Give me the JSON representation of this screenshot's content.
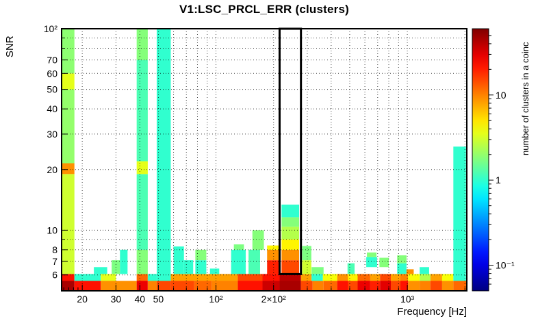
{
  "chart_data": {
    "type": "heatmap",
    "title": "V1:LSC_PRCL_ERR (clusters)",
    "xlabel": "Frequency [Hz]",
    "ylabel": "SNR",
    "zlabel": "number of clusters in a coinc",
    "xlim": [
      15.6,
      2046
    ],
    "ylim": [
      5.0,
      100
    ],
    "zlim": [
      0.05,
      60
    ],
    "x_scale": "log",
    "y_scale": "log",
    "z_scale": "log",
    "grid": "dotted",
    "frame_color": "#000000",
    "xticks": [
      {
        "v": 20,
        "label": "20"
      },
      {
        "v": 30,
        "label": "30"
      },
      {
        "v": 40,
        "label": "40"
      },
      {
        "v": 50,
        "label": "50"
      },
      {
        "v": 100,
        "label": "10²"
      },
      {
        "v": 200,
        "label": "2×10²"
      },
      {
        "v": 1000,
        "label": "10³"
      }
    ],
    "xminor": [
      16,
      17,
      18,
      19,
      60,
      70,
      80,
      90,
      300,
      400,
      500,
      600,
      700,
      800,
      900,
      2000
    ],
    "yticks": [
      {
        "v": 6,
        "label": "6"
      },
      {
        "v": 7,
        "label": "7"
      },
      {
        "v": 8,
        "label": "8"
      },
      {
        "v": 10,
        "label": "10"
      },
      {
        "v": 20,
        "label": "20"
      },
      {
        "v": 30,
        "label": "30"
      },
      {
        "v": 40,
        "label": "40"
      },
      {
        "v": 50,
        "label": "50"
      },
      {
        "v": 60,
        "label": "60"
      },
      {
        "v": 70,
        "label": "70"
      },
      {
        "v": 100,
        "label": "10²"
      }
    ],
    "yminor": [
      9,
      80,
      90
    ],
    "xgrid": [
      20,
      30,
      40,
      50,
      60,
      70,
      80,
      90,
      100,
      200,
      300,
      400,
      500,
      600,
      700,
      800,
      900,
      1000,
      2000
    ],
    "ygrid": [
      6,
      7,
      8,
      9,
      10,
      20,
      30,
      40,
      50,
      60,
      70,
      80,
      90,
      100
    ],
    "zticks": [
      {
        "v": 0.1,
        "label": "10⁻¹"
      },
      {
        "v": 1,
        "label": "1"
      },
      {
        "v": 10,
        "label": "10"
      }
    ],
    "zminor": [
      0.06,
      0.07,
      0.08,
      0.09,
      0.2,
      0.3,
      0.4,
      0.5,
      0.6,
      0.7,
      0.8,
      0.9,
      2,
      3,
      4,
      5,
      6,
      7,
      8,
      9,
      20,
      30,
      40,
      50
    ],
    "highlight_box": {
      "f1": 215,
      "f2": 278,
      "s1": 6.06,
      "s2": 100,
      "color": "#000000",
      "width": 3
    },
    "bins_format": [
      "freq_lo_hz",
      "freq_hi_hz",
      "snr_lo",
      "snr_hi",
      "clusters_per_coinc"
    ],
    "bins": [
      [
        15.6,
        18.2,
        5.0,
        5.6,
        45
      ],
      [
        15.6,
        18.2,
        5.6,
        6.06,
        22
      ],
      [
        15.6,
        18.2,
        6.06,
        19,
        3
      ],
      [
        15.6,
        18.2,
        19,
        21.5,
        9
      ],
      [
        15.6,
        18.2,
        21.5,
        50,
        2
      ],
      [
        15.6,
        18.2,
        50,
        60,
        3.5
      ],
      [
        15.6,
        18.2,
        60,
        100,
        1.9
      ],
      [
        18.2,
        25,
        5.0,
        5.6,
        22
      ],
      [
        18.2,
        25,
        5.6,
        6.06,
        1
      ],
      [
        23,
        27,
        6.06,
        6.56,
        1
      ],
      [
        25,
        38.5,
        5.0,
        5.6,
        9
      ],
      [
        25,
        30,
        5.6,
        6.06,
        3.5
      ],
      [
        28.5,
        31.5,
        6.06,
        7.1,
        1.7
      ],
      [
        31.5,
        34.5,
        6.06,
        8.0,
        1
      ],
      [
        38.5,
        44,
        5.0,
        5.6,
        28
      ],
      [
        38.5,
        44,
        5.6,
        6.06,
        12
      ],
      [
        38.5,
        44,
        6.06,
        8.0,
        1.8
      ],
      [
        38.5,
        44,
        8.0,
        19,
        1.2
      ],
      [
        38.5,
        44,
        19,
        22,
        3.5
      ],
      [
        38.5,
        44,
        22,
        70,
        1.2
      ],
      [
        38.5,
        44,
        70,
        100,
        1.8
      ],
      [
        44,
        49,
        5.0,
        5.6,
        10
      ],
      [
        44,
        49,
        5.6,
        6.06,
        1
      ],
      [
        49,
        58,
        5.0,
        5.6,
        15
      ],
      [
        49,
        58,
        5.6,
        100,
        1
      ],
      [
        58,
        77,
        5.0,
        5.6,
        15
      ],
      [
        58,
        130,
        5.6,
        6.06,
        8
      ],
      [
        60,
        68,
        6.06,
        8.3,
        1
      ],
      [
        68,
        76,
        6.06,
        7.1,
        1
      ],
      [
        77,
        95,
        5.0,
        5.6,
        12
      ],
      [
        78,
        89,
        6.06,
        7.1,
        1
      ],
      [
        78,
        89,
        7.1,
        8.0,
        1.8
      ],
      [
        93,
        104,
        6.06,
        6.45,
        1
      ],
      [
        95,
        130,
        5.0,
        5.6,
        10
      ],
      [
        120,
        143,
        6.06,
        8.0,
        1
      ],
      [
        124,
        140,
        8.0,
        8.5,
        1.7
      ],
      [
        130,
        175,
        5.0,
        5.6,
        22
      ],
      [
        130,
        175,
        5.6,
        6.06,
        15
      ],
      [
        148,
        170,
        6.06,
        8.0,
        1.2
      ],
      [
        155,
        178,
        8.0,
        10.0,
        1.8
      ],
      [
        175,
        215,
        5.0,
        5.6,
        35
      ],
      [
        175,
        215,
        5.6,
        6.06,
        22
      ],
      [
        185,
        214,
        6.06,
        7.1,
        20
      ],
      [
        185,
        214,
        7.1,
        8.0,
        9
      ],
      [
        185,
        214,
        8.0,
        8.4,
        4.5
      ],
      [
        215,
        278,
        5.0,
        5.6,
        45
      ],
      [
        215,
        278,
        5.6,
        6.06,
        40
      ],
      [
        220,
        272,
        6.06,
        7.1,
        15
      ],
      [
        220,
        272,
        7.1,
        8.0,
        9
      ],
      [
        220,
        272,
        8.0,
        9.0,
        4.5
      ],
      [
        220,
        272,
        9.0,
        10.4,
        2.5
      ],
      [
        220,
        272,
        10.4,
        11.6,
        1.8
      ],
      [
        220,
        272,
        11.6,
        13.4,
        1
      ],
      [
        278,
        320,
        5.0,
        5.6,
        15
      ],
      [
        278,
        316,
        5.6,
        6.06,
        8
      ],
      [
        282,
        315,
        6.06,
        7.1,
        3
      ],
      [
        282,
        315,
        7.1,
        8.35,
        1.7
      ],
      [
        316,
        365,
        6.06,
        6.56,
        1.7
      ],
      [
        316,
        362,
        5.6,
        6.06,
        1
      ],
      [
        320,
        365,
        5.0,
        5.6,
        10
      ],
      [
        362,
        430,
        5.6,
        6.06,
        4
      ],
      [
        365,
        430,
        5.0,
        5.6,
        12
      ],
      [
        430,
        490,
        5.0,
        5.6,
        22
      ],
      [
        430,
        490,
        5.6,
        6.06,
        9
      ],
      [
        487,
        530,
        6.06,
        6.85,
        1.2
      ],
      [
        490,
        550,
        5.0,
        5.6,
        15
      ],
      [
        490,
        550,
        5.6,
        6.06,
        4.5
      ],
      [
        550,
        640,
        5.0,
        5.6,
        28
      ],
      [
        550,
        640,
        5.6,
        6.06,
        12
      ],
      [
        610,
        695,
        6.56,
        7.35,
        1
      ],
      [
        615,
        690,
        7.35,
        7.75,
        1.8
      ],
      [
        640,
        720,
        5.0,
        5.6,
        20
      ],
      [
        640,
        720,
        5.6,
        6.06,
        8
      ],
      [
        715,
        800,
        6.56,
        7.3,
        1.8
      ],
      [
        720,
        820,
        5.0,
        5.6,
        30
      ],
      [
        720,
        820,
        5.6,
        6.06,
        15
      ],
      [
        820,
        920,
        5.0,
        5.6,
        15
      ],
      [
        820,
        920,
        5.6,
        6.06,
        8
      ],
      [
        885,
        990,
        6.06,
        6.85,
        1
      ],
      [
        885,
        990,
        6.85,
        7.5,
        1.8
      ],
      [
        920,
        1010,
        5.0,
        5.6,
        22
      ],
      [
        920,
        1010,
        5.6,
        6.06,
        10
      ],
      [
        990,
        1080,
        6.06,
        6.4,
        9
      ],
      [
        1010,
        1160,
        5.0,
        5.6,
        9
      ],
      [
        1010,
        1160,
        5.6,
        6.06,
        4
      ],
      [
        1160,
        1300,
        6.06,
        6.56,
        1
      ],
      [
        1160,
        1320,
        5.0,
        5.6,
        10
      ],
      [
        1160,
        1320,
        5.6,
        6.06,
        2.5
      ],
      [
        1320,
        1520,
        5.0,
        5.6,
        15
      ],
      [
        1320,
        1520,
        5.6,
        6.06,
        8
      ],
      [
        1520,
        1740,
        5.0,
        5.6,
        9
      ],
      [
        1520,
        1740,
        5.6,
        6.06,
        4
      ],
      [
        1740,
        2046,
        5.0,
        5.6,
        12
      ],
      [
        1740,
        2025,
        5.6,
        26,
        1
      ]
    ]
  }
}
